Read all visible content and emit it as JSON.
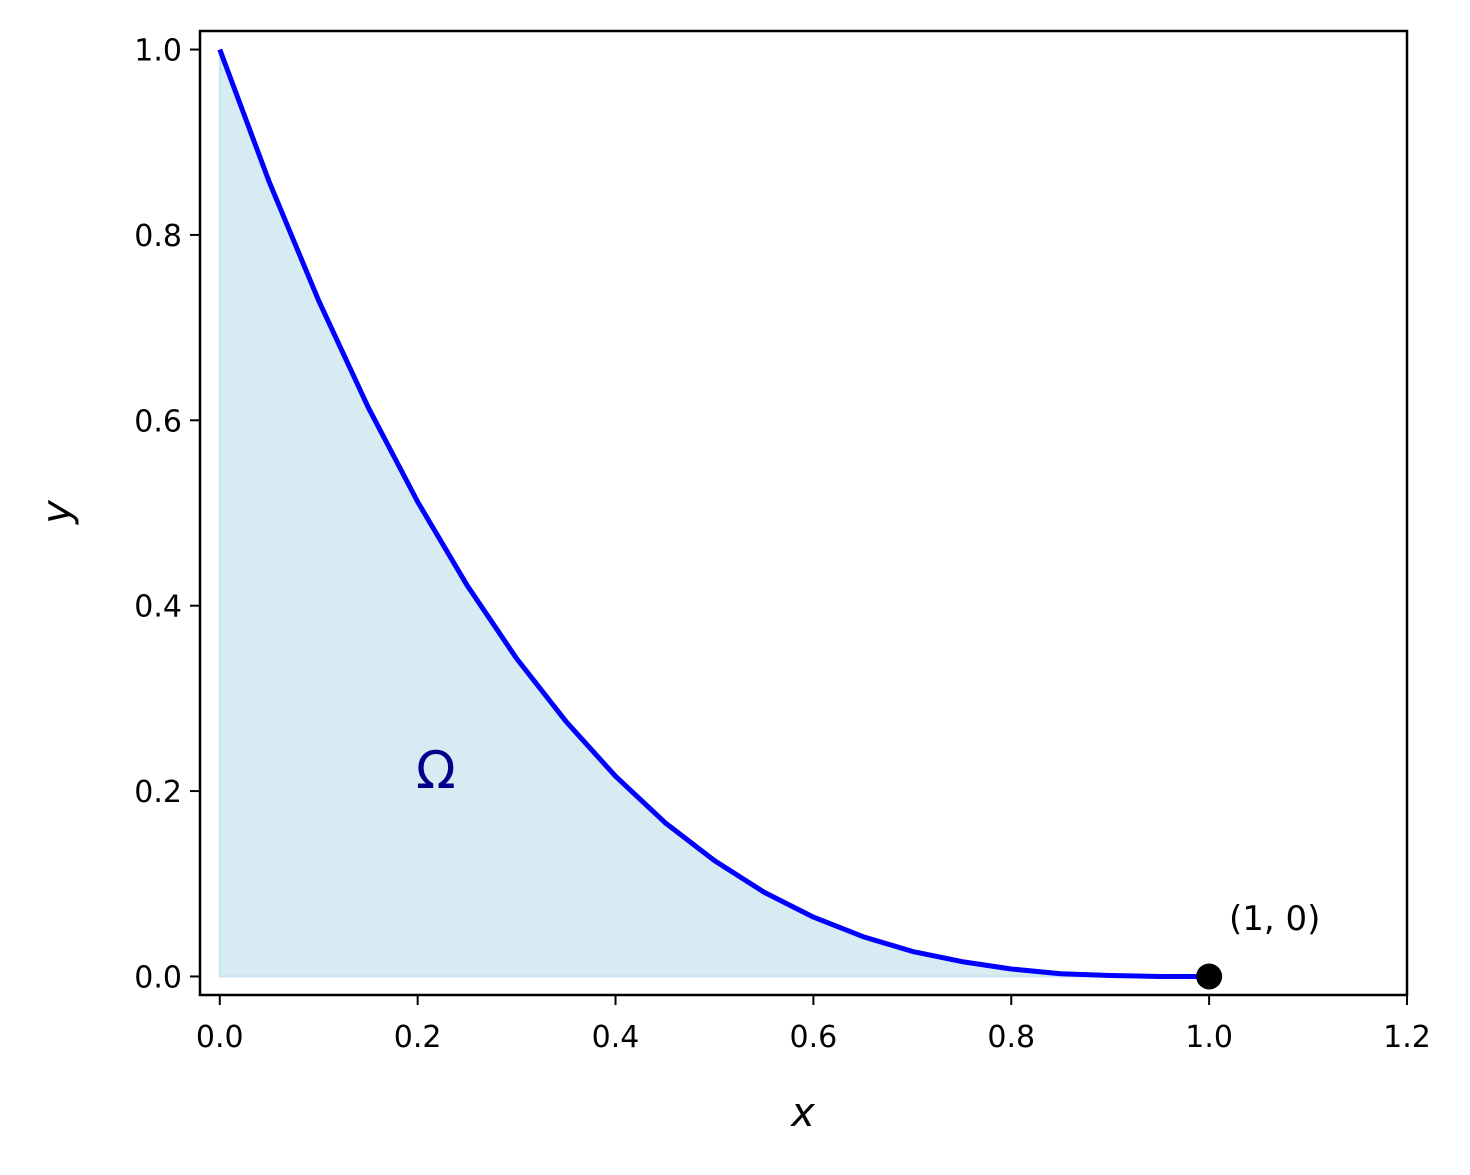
{
  "chart_data": {
    "type": "line",
    "title": "",
    "xlabel": "x",
    "ylabel": "y",
    "xlim": [
      -0.02,
      1.2
    ],
    "ylim": [
      -0.02,
      1.02
    ],
    "x_ticks": [
      "0.0",
      "0.2",
      "0.4",
      "0.6",
      "0.8",
      "1.0",
      "1.2"
    ],
    "y_ticks": [
      "0.0",
      "0.2",
      "0.4",
      "0.6",
      "0.8",
      "1.0"
    ],
    "x_tick_values": [
      0,
      0.2,
      0.4,
      0.6,
      0.8,
      1.0,
      1.2
    ],
    "y_tick_values": [
      0,
      0.2,
      0.4,
      0.6,
      0.8,
      1.0
    ],
    "grid": false,
    "series": [
      {
        "x": [
          0,
          0.05,
          0.1,
          0.15,
          0.2,
          0.25,
          0.3,
          0.35,
          0.4,
          0.45,
          0.5,
          0.55,
          0.6,
          0.65,
          0.7,
          0.75,
          0.8,
          0.85,
          0.9,
          0.95,
          1.0
        ],
        "y": [
          1.0,
          0.857,
          0.729,
          0.614,
          0.512,
          0.422,
          0.343,
          0.275,
          0.216,
          0.166,
          0.125,
          0.091,
          0.064,
          0.043,
          0.027,
          0.016,
          0.008,
          0.003,
          0.001,
          0.0,
          0.0
        ],
        "color": "#0000ff"
      }
    ],
    "fill_color": "#add8e6",
    "point": {
      "x": 1.0,
      "y": 0.0,
      "label": "(1, 0)",
      "color": "#000000"
    },
    "region_label": {
      "text": "Ω",
      "x": 0.23,
      "y": 0.22,
      "color": "#00008b"
    }
  }
}
